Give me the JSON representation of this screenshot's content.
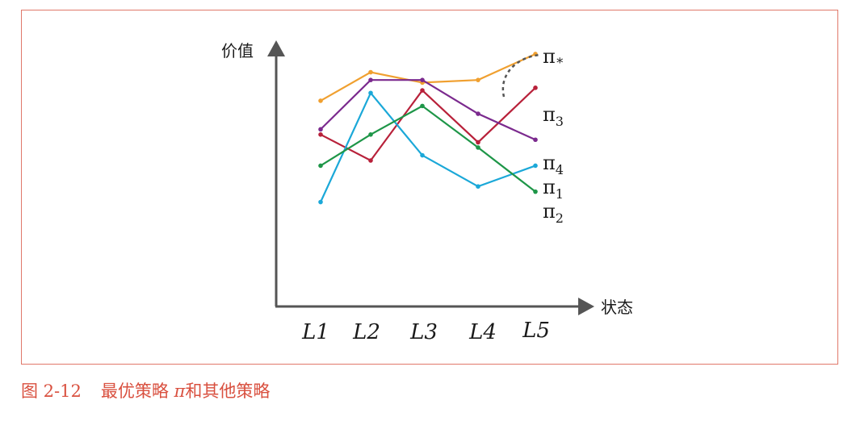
{
  "caption": {
    "number": "图 2-12",
    "text_before": "最优策略 ",
    "pi": "π",
    "text_after": "和其他策略"
  },
  "colors": {
    "frame": "#e0786a",
    "caption": "#d9503f",
    "axis": "#555555"
  },
  "chart_data": {
    "type": "line",
    "title": "",
    "xlabel": "状态",
    "ylabel": "价值",
    "categories": [
      "L1",
      "L2",
      "L3",
      "L4",
      "L5"
    ],
    "ylim": [
      0,
      100
    ],
    "grid": false,
    "series": [
      {
        "name": "π*",
        "base": "π",
        "sub": "*",
        "color": "#f0a030",
        "values": [
          73,
          84,
          80,
          81,
          91
        ]
      },
      {
        "name": "π3",
        "base": "π",
        "sub": "3",
        "color": "#b8213a",
        "values": [
          60,
          50,
          77,
          57,
          78
        ]
      },
      {
        "name": "π4",
        "base": "π",
        "sub": "4",
        "color": "#7b2a8e",
        "values": [
          62,
          81,
          81,
          68,
          58
        ]
      },
      {
        "name": "π1",
        "base": "π",
        "sub": "1",
        "color": "#1ba8d8",
        "values": [
          34,
          76,
          52,
          40,
          48
        ]
      },
      {
        "name": "π2",
        "base": "π",
        "sub": "2",
        "color": "#1e9648",
        "values": [
          48,
          60,
          71,
          55,
          38
        ]
      }
    ]
  }
}
